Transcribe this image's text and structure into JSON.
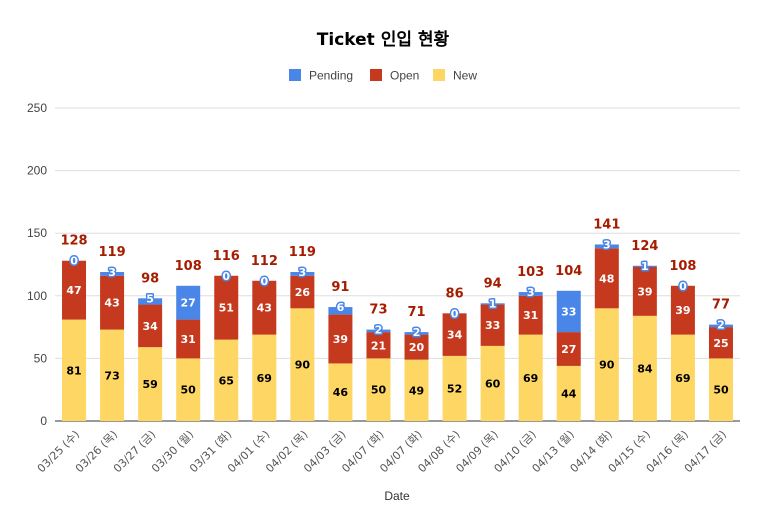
{
  "chart_data": {
    "type": "bar",
    "stacked": true,
    "title": "Ticket 인입 현황",
    "xlabel": "Date",
    "ylabel": "",
    "ylim": [
      0,
      250
    ],
    "yticks": [
      0,
      50,
      100,
      150,
      200,
      250
    ],
    "grid": true,
    "legend_position": "top",
    "categories": [
      "03/25 (수)",
      "03/26 (목)",
      "03/27 (금)",
      "03/30 (월)",
      "03/31 (화)",
      "04/01 (수)",
      "04/02 (목)",
      "04/03 (금)",
      "04/07 (화)",
      "04/07 (화)",
      "04/08 (수)",
      "04/09 (목)",
      "04/10 (금)",
      "04/13 (월)",
      "04/14 (화)",
      "04/15 (수)",
      "04/16 (목)",
      "04/17 (금)"
    ],
    "series": [
      {
        "name": "New",
        "color": "#fdd663",
        "values": [
          81,
          73,
          59,
          50,
          65,
          69,
          90,
          46,
          50,
          49,
          52,
          60,
          69,
          44,
          90,
          84,
          69,
          50
        ]
      },
      {
        "name": "Open",
        "color": "#c5391f",
        "values": [
          47,
          43,
          34,
          31,
          51,
          43,
          26,
          39,
          21,
          20,
          34,
          33,
          31,
          27,
          48,
          39,
          39,
          25
        ]
      },
      {
        "name": "Pending",
        "color": "#4a86e8",
        "values": [
          0,
          3,
          5,
          27,
          0,
          0,
          3,
          6,
          2,
          2,
          0,
          1,
          3,
          33,
          3,
          1,
          0,
          2
        ]
      }
    ],
    "legend_order": [
      "Pending",
      "Open",
      "New"
    ],
    "totals": [
      128,
      119,
      98,
      108,
      116,
      112,
      119,
      91,
      73,
      71,
      86,
      94,
      103,
      104,
      141,
      124,
      108,
      77
    ],
    "total_label_color": "#a61c00"
  }
}
